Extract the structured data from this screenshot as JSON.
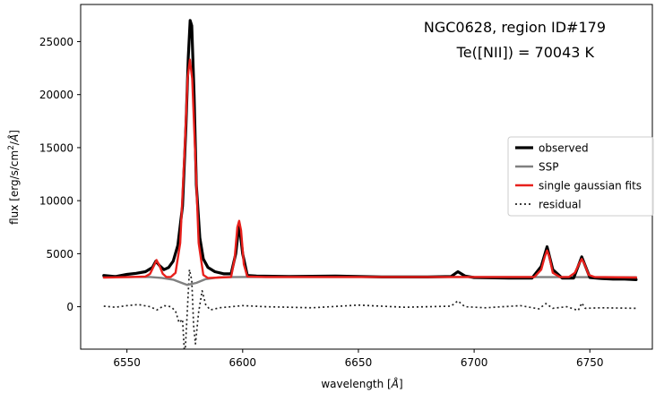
{
  "chart_data": {
    "type": "line",
    "annotation": [
      "NGC0628, region ID#179",
      "Te([NII]) = 70043 K"
    ],
    "xlabel_parts": [
      "wavelength [",
      "Å",
      "]"
    ],
    "ylabel_parts": [
      "flux [erg/s/cm",
      "2",
      "/",
      "Å",
      "]"
    ],
    "xlim": [
      6530,
      6777
    ],
    "ylim": [
      -4000,
      28500
    ],
    "xticks": [
      6550,
      6600,
      6650,
      6700,
      6750
    ],
    "yticks": [
      0,
      5000,
      10000,
      15000,
      20000,
      25000
    ],
    "grid": false,
    "legend_position": "center-right",
    "series": [
      {
        "name": "observed",
        "color": "#000000",
        "width": 3.2,
        "dash": "",
        "x": [
          6540,
          6545,
          6550,
          6554,
          6558,
          6561,
          6562.5,
          6564,
          6566,
          6568,
          6570,
          6572,
          6574,
          6575.5,
          6576.5,
          6577.3,
          6578,
          6579,
          6580,
          6581.5,
          6583,
          6585,
          6588,
          6592,
          6595,
          6597,
          6598.5,
          6600,
          6602,
          6606,
          6620,
          6640,
          6660,
          6680,
          6690,
          6693,
          6696,
          6700,
          6715,
          6725,
          6729,
          6731.5,
          6734,
          6738,
          6743,
          6746.5,
          6750,
          6755,
          6760,
          6765,
          6770
        ],
        "y": [
          2950,
          2850,
          3050,
          3150,
          3300,
          3700,
          4300,
          3900,
          3500,
          3700,
          4300,
          5800,
          9500,
          17000,
          23500,
          27000,
          26500,
          20000,
          11500,
          6500,
          4500,
          3700,
          3300,
          3100,
          3100,
          5000,
          7850,
          5000,
          2950,
          2900,
          2850,
          2900,
          2800,
          2800,
          2850,
          3300,
          2900,
          2750,
          2700,
          2700,
          3800,
          5650,
          3500,
          2700,
          2700,
          4700,
          2750,
          2650,
          2600,
          2600,
          2550
        ]
      },
      {
        "name": "SSP",
        "color": "#808080",
        "width": 2.4,
        "dash": "",
        "x": [
          6540,
          6560,
          6565,
          6570,
          6573,
          6576,
          6580,
          6584,
          6590,
          6600,
          6700,
          6770
        ],
        "y": [
          2820,
          2800,
          2720,
          2550,
          2300,
          2050,
          2250,
          2600,
          2780,
          2800,
          2800,
          2780
        ]
      },
      {
        "name": "single gaussian fits",
        "color": "#e8201c",
        "width": 2.4,
        "dash": "",
        "x": [
          6540,
          6552,
          6558,
          6560,
          6561.5,
          6562.8,
          6564,
          6565.5,
          6567,
          6569,
          6571,
          6573,
          6575,
          6576.2,
          6577.2,
          6578.2,
          6579.4,
          6581,
          6583,
          6585,
          6590,
          6595,
          6596.5,
          6597.7,
          6598.5,
          6599.3,
          6600.5,
          6602,
          6610,
          6720,
          6726,
          6729,
          6730.5,
          6731.5,
          6732.5,
          6734,
          6737,
          6741,
          6743.5,
          6745.5,
          6746.5,
          6747.5,
          6749.5,
          6752,
          6770
        ],
        "y": [
          2750,
          2800,
          2850,
          3100,
          3800,
          4400,
          3900,
          3100,
          2800,
          2800,
          3200,
          6000,
          15000,
          21500,
          23300,
          21500,
          15000,
          6000,
          3000,
          2700,
          2750,
          2800,
          4500,
          7500,
          8100,
          7200,
          4000,
          2850,
          2800,
          2800,
          2800,
          3500,
          4700,
          5300,
          4700,
          3200,
          2800,
          2800,
          3200,
          4100,
          4500,
          4100,
          3000,
          2800,
          2750
        ]
      },
      {
        "name": "residual",
        "color": "#222222",
        "width": 1.7,
        "dash": "2,3",
        "x": [
          6540,
          6545,
          6550,
          6555,
          6560,
          6563,
          6566,
          6569,
          6571,
          6572.5,
          6574,
          6575,
          6576,
          6577,
          6578,
          6578.8,
          6579.6,
          6581,
          6582.5,
          6584,
          6586,
          6590,
          6600,
          6610,
          6630,
          6650,
          6670,
          6690,
          6693,
          6696,
          6705,
          6720,
          6728,
          6731,
          6734,
          6740,
          6745,
          6746.5,
          6748,
          6755,
          6770
        ],
        "y": [
          50,
          -50,
          100,
          200,
          0,
          -300,
          100,
          0,
          -400,
          -1500,
          -1200,
          -4900,
          -800,
          3500,
          2500,
          -1800,
          -3500,
          -500,
          1500,
          200,
          -300,
          -100,
          100,
          0,
          -100,
          150,
          -50,
          50,
          550,
          0,
          -100,
          100,
          -200,
          300,
          -150,
          0,
          -350,
          350,
          -150,
          -100,
          -150
        ]
      }
    ]
  }
}
